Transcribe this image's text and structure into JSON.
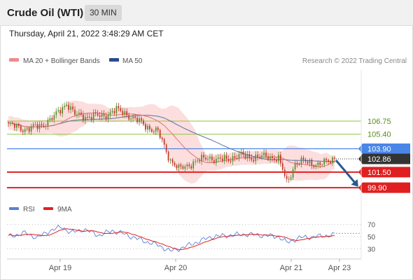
{
  "header": {
    "instrument": "Crude Oil (WTI)",
    "timeframe": "30 MIN",
    "timestamp": "Thursday, April 21, 2022 3:48:29 AM CET"
  },
  "legend": {
    "ma20": "MA 20 + Bollinger Bands",
    "ma50": "MA 50",
    "credit": "Research © 2022 Trading Central"
  },
  "colors": {
    "candle_up": "#5b8f2a",
    "candle_down": "#c0392b",
    "ma20": "#e57373",
    "ma50": "#5a6fa8",
    "bollinger_fill": "#fbd3d3",
    "support_line": "#e02020",
    "resistance_line": "#4a86e8",
    "green_level": "#8cc63f",
    "last_price": "#333333",
    "forecast_arrow": "#2a5a8c",
    "rsi_line": "#5b7fd6",
    "rsi_9ma": "#e02020"
  },
  "chart_data": {
    "type": "candlestick",
    "title": "Crude Oil (WTI)",
    "timeframe": "30 MIN",
    "xlabels": [
      "Apr 19",
      "Apr 20",
      "Apr 21",
      "Apr 23"
    ],
    "price_ylim": [
      98.9,
      112.0
    ],
    "levels": [
      {
        "value": 106.75,
        "label": "106.75",
        "kind": "green"
      },
      {
        "value": 105.4,
        "label": "105.40",
        "kind": "green"
      },
      {
        "value": 103.9,
        "label": "103.90",
        "kind": "resistance"
      },
      {
        "value": 102.86,
        "label": "102.86",
        "kind": "last"
      },
      {
        "value": 101.5,
        "label": "101.50",
        "kind": "support"
      },
      {
        "value": 99.9,
        "label": "99.90",
        "kind": "support"
      }
    ],
    "close_anchors": [
      {
        "x": 0,
        "y": 106.4
      },
      {
        "x": 8,
        "y": 105.9
      },
      {
        "x": 16,
        "y": 106.3
      },
      {
        "x": 22,
        "y": 107.2
      },
      {
        "x": 28,
        "y": 108.6
      },
      {
        "x": 32,
        "y": 107.4
      },
      {
        "x": 38,
        "y": 107.2
      },
      {
        "x": 46,
        "y": 107.3
      },
      {
        "x": 52,
        "y": 107.9
      },
      {
        "x": 56,
        "y": 107.6
      },
      {
        "x": 60,
        "y": 107.0
      },
      {
        "x": 64,
        "y": 106.6
      },
      {
        "x": 68,
        "y": 106.0
      },
      {
        "x": 72,
        "y": 105.6
      },
      {
        "x": 74,
        "y": 104.7
      },
      {
        "x": 78,
        "y": 102.7
      },
      {
        "x": 82,
        "y": 101.8
      },
      {
        "x": 86,
        "y": 102.2
      },
      {
        "x": 92,
        "y": 102.7
      },
      {
        "x": 96,
        "y": 103.1
      },
      {
        "x": 100,
        "y": 102.7
      },
      {
        "x": 106,
        "y": 102.9
      },
      {
        "x": 112,
        "y": 103.2
      },
      {
        "x": 118,
        "y": 103.0
      },
      {
        "x": 124,
        "y": 103.1
      },
      {
        "x": 130,
        "y": 102.9
      },
      {
        "x": 132,
        "y": 101.7
      },
      {
        "x": 134,
        "y": 100.4
      },
      {
        "x": 136,
        "y": 101.3
      },
      {
        "x": 138,
        "y": 102.4
      },
      {
        "x": 142,
        "y": 102.6
      },
      {
        "x": 146,
        "y": 102.4
      },
      {
        "x": 150,
        "y": 102.3
      },
      {
        "x": 154,
        "y": 102.6
      },
      {
        "x": 157,
        "y": 102.86
      }
    ],
    "n_candles": 158,
    "forecast": {
      "from": 102.86,
      "to": 99.9
    },
    "rsi": {
      "legend": [
        "RSI",
        "9MA"
      ],
      "ylim": [
        20,
        80
      ],
      "levels": [
        70,
        50,
        30
      ],
      "anchors": [
        {
          "x": 0,
          "y": 50
        },
        {
          "x": 8,
          "y": 56
        },
        {
          "x": 14,
          "y": 48
        },
        {
          "x": 20,
          "y": 60
        },
        {
          "x": 26,
          "y": 66
        },
        {
          "x": 30,
          "y": 56
        },
        {
          "x": 36,
          "y": 62
        },
        {
          "x": 44,
          "y": 52
        },
        {
          "x": 50,
          "y": 60
        },
        {
          "x": 56,
          "y": 54
        },
        {
          "x": 64,
          "y": 44
        },
        {
          "x": 72,
          "y": 36
        },
        {
          "x": 78,
          "y": 26
        },
        {
          "x": 84,
          "y": 32
        },
        {
          "x": 90,
          "y": 40
        },
        {
          "x": 98,
          "y": 50
        },
        {
          "x": 106,
          "y": 52
        },
        {
          "x": 114,
          "y": 54
        },
        {
          "x": 122,
          "y": 52
        },
        {
          "x": 130,
          "y": 50
        },
        {
          "x": 134,
          "y": 40
        },
        {
          "x": 140,
          "y": 48
        },
        {
          "x": 148,
          "y": 50
        },
        {
          "x": 157,
          "y": 53
        }
      ]
    }
  }
}
